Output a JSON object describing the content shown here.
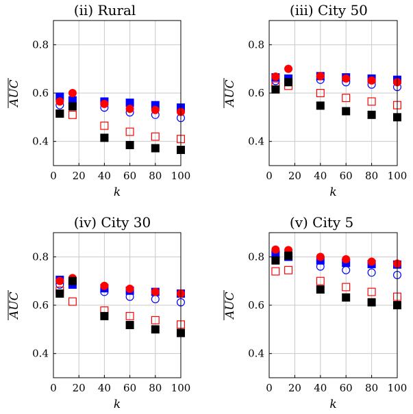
{
  "chart_data": [
    {
      "type": "scatter",
      "title": "(ii) Rural",
      "xlabel": "k",
      "ylabel": "AUC",
      "ylabel_overline": true,
      "xlim": [
        0,
        100
      ],
      "ylim": [
        0.3,
        0.9
      ],
      "xticks": [
        0,
        20,
        40,
        60,
        80,
        100
      ],
      "yticks": [
        0.4,
        0.6,
        0.8
      ],
      "grid": true,
      "x": [
        5,
        15,
        40,
        60,
        80,
        100
      ],
      "series": [
        {
          "marker": "square-filled",
          "color": "#0000ff",
          "values": [
            0.585,
            0.57,
            0.565,
            0.56,
            0.55,
            0.54
          ]
        },
        {
          "marker": "circle-open",
          "color": "#0000ff",
          "values": [
            0.55,
            0.55,
            0.54,
            0.52,
            0.51,
            0.497
          ]
        },
        {
          "marker": "circle-filled",
          "color": "#ff0000",
          "values": [
            0.565,
            0.6,
            0.555,
            0.535,
            0.53,
            0.522
          ]
        },
        {
          "marker": "square-open",
          "color": "#ff0000",
          "values": [
            0.515,
            0.51,
            0.465,
            0.44,
            0.42,
            0.41
          ]
        },
        {
          "marker": "square-filled",
          "color": "#000000",
          "values": [
            0.515,
            0.545,
            0.415,
            0.385,
            0.372,
            0.365
          ]
        }
      ]
    },
    {
      "type": "scatter",
      "title": "(iii) City 50",
      "xlabel": "k",
      "ylabel": "AUC",
      "ylabel_overline": true,
      "xlim": [
        0,
        100
      ],
      "ylim": [
        0.3,
        0.9
      ],
      "xticks": [
        0,
        20,
        40,
        60,
        80,
        100
      ],
      "yticks": [
        0.4,
        0.6,
        0.8
      ],
      "grid": true,
      "x": [
        5,
        15,
        40,
        60,
        80,
        100
      ],
      "series": [
        {
          "marker": "square-filled",
          "color": "#0000ff",
          "values": [
            0.665,
            0.66,
            0.67,
            0.665,
            0.66,
            0.655
          ]
        },
        {
          "marker": "circle-open",
          "color": "#0000ff",
          "values": [
            0.65,
            0.645,
            0.655,
            0.645,
            0.635,
            0.625
          ]
        },
        {
          "marker": "circle-filled",
          "color": "#ff0000",
          "values": [
            0.668,
            0.7,
            0.67,
            0.66,
            0.652,
            0.645
          ]
        },
        {
          "marker": "square-open",
          "color": "#ff0000",
          "values": [
            0.63,
            0.63,
            0.6,
            0.58,
            0.565,
            0.55
          ]
        },
        {
          "marker": "square-filled",
          "color": "#000000",
          "values": [
            0.615,
            0.645,
            0.548,
            0.525,
            0.51,
            0.5
          ]
        }
      ]
    },
    {
      "type": "scatter",
      "title": "(iv) City 30",
      "xlabel": "k",
      "ylabel": "AUC",
      "ylabel_overline": true,
      "xlim": [
        0,
        100
      ],
      "ylim": [
        0.3,
        0.9
      ],
      "xticks": [
        0,
        20,
        40,
        60,
        80,
        100
      ],
      "yticks": [
        0.4,
        0.6,
        0.8
      ],
      "grid": true,
      "x": [
        5,
        15,
        40,
        60,
        80,
        100
      ],
      "series": [
        {
          "marker": "square-filled",
          "color": "#0000ff",
          "values": [
            0.705,
            0.685,
            0.67,
            0.66,
            0.655,
            0.648
          ]
        },
        {
          "marker": "circle-open",
          "color": "#0000ff",
          "values": [
            0.685,
            0.69,
            0.655,
            0.635,
            0.625,
            0.612
          ]
        },
        {
          "marker": "circle-filled",
          "color": "#ff0000",
          "values": [
            0.7,
            0.712,
            0.68,
            0.668,
            0.655,
            0.648
          ]
        },
        {
          "marker": "square-open",
          "color": "#ff0000",
          "values": [
            0.66,
            0.615,
            0.578,
            0.555,
            0.538,
            0.52
          ]
        },
        {
          "marker": "square-filled",
          "color": "#000000",
          "values": [
            0.648,
            0.7,
            0.555,
            0.518,
            0.5,
            0.485
          ]
        }
      ]
    },
    {
      "type": "scatter",
      "title": "(v) City 5",
      "xlabel": "k",
      "ylabel": "AUC",
      "ylabel_overline": true,
      "xlim": [
        0,
        100
      ],
      "ylim": [
        0.3,
        0.9
      ],
      "xticks": [
        0,
        20,
        40,
        60,
        80,
        100
      ],
      "yticks": [
        0.4,
        0.6,
        0.8
      ],
      "grid": true,
      "x": [
        5,
        15,
        40,
        60,
        80,
        100
      ],
      "series": [
        {
          "marker": "square-filled",
          "color": "#0000ff",
          "values": [
            0.81,
            0.8,
            0.785,
            0.775,
            0.77,
            0.768
          ]
        },
        {
          "marker": "circle-open",
          "color": "#0000ff",
          "values": [
            0.82,
            0.815,
            0.76,
            0.745,
            0.735,
            0.725
          ]
        },
        {
          "marker": "circle-filled",
          "color": "#ff0000",
          "values": [
            0.83,
            0.828,
            0.8,
            0.79,
            0.78,
            0.772
          ]
        },
        {
          "marker": "square-open",
          "color": "#ff0000",
          "values": [
            0.74,
            0.745,
            0.7,
            0.675,
            0.655,
            0.635
          ]
        },
        {
          "marker": "square-filled",
          "color": "#000000",
          "values": [
            0.785,
            0.805,
            0.665,
            0.632,
            0.612,
            0.6
          ]
        }
      ]
    }
  ]
}
